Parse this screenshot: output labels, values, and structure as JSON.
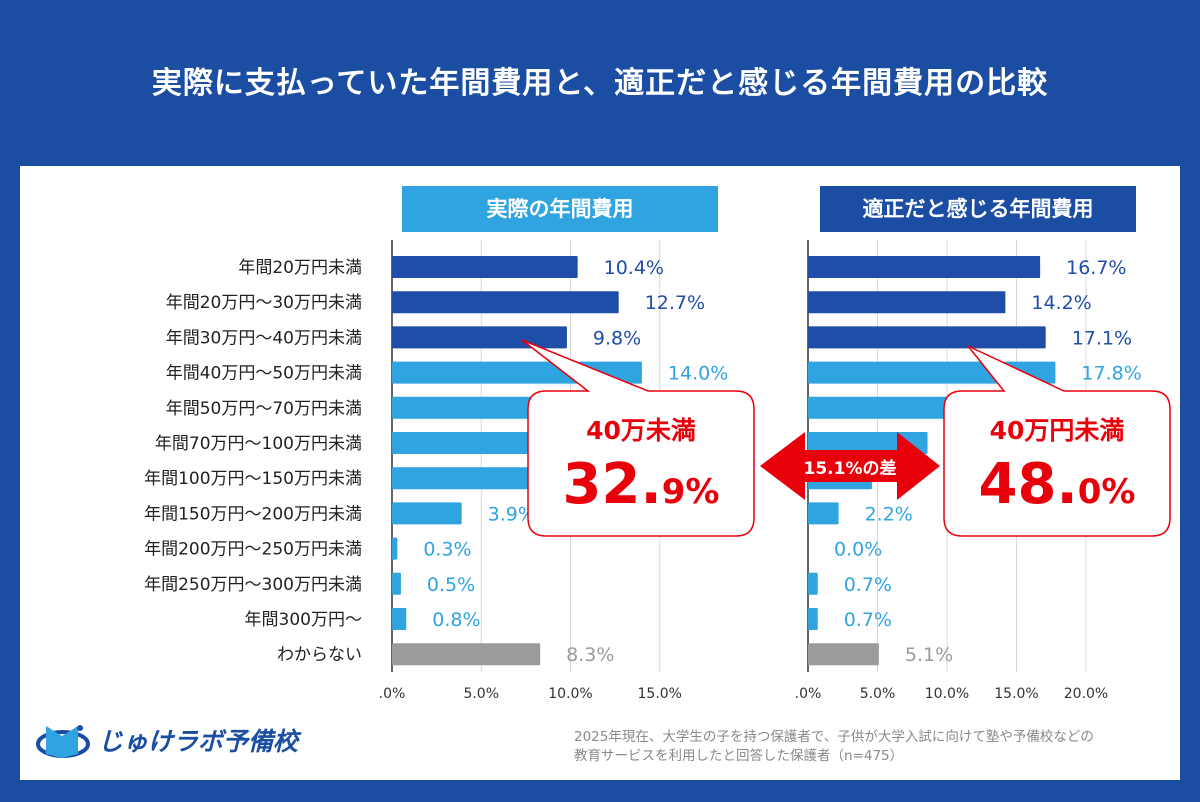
{
  "title": "実際に支払っていた年間費用と、適正だと感じる年間費用の比較",
  "chart_data": [
    {
      "type": "bar",
      "orientation": "horizontal",
      "title": "実際の年間費用",
      "categories": [
        "年間20万円未満",
        "年間20万円〜30万円未満",
        "年間30万円〜40万円未満",
        "年間40万円〜50万円未満",
        "年間50万円〜70万円未満",
        "年間70万円〜100万円未満",
        "年間100万円〜150万円未満",
        "年間150万円〜200万円未満",
        "年間200万円〜250万円未満",
        "年間250万円〜300万円未満",
        "年間300万円〜",
        "わからない"
      ],
      "values": [
        10.4,
        12.7,
        9.8,
        14.0,
        14.4,
        13.2,
        11.7,
        3.9,
        0.3,
        0.5,
        0.8,
        8.3
      ],
      "labels": [
        "10.4%",
        "12.7%",
        "9.8%",
        "14.0%",
        "",
        "",
        "",
        "3.9%",
        "0.3%",
        "0.5%",
        "0.8%",
        "8.3%"
      ],
      "xlim": [
        0,
        17
      ],
      "xticks": [
        ".0%",
        "5.0%",
        "10.0%",
        "15.0%"
      ],
      "xtick_values": [
        0,
        5,
        10,
        15
      ],
      "grid": true,
      "callout": {
        "label": "40万未満",
        "value_main": "32.",
        "value_small": "9%"
      }
    },
    {
      "type": "bar",
      "orientation": "horizontal",
      "title": "適正だと感じる年間費用",
      "categories": [
        "年間20万円未満",
        "年間20万円〜30万円未満",
        "年間30万円〜40万円未満",
        "年間40万円〜50万円未満",
        "年間50万円〜70万円未満",
        "年間70万円〜100万円未満",
        "年間100万円〜150万円未満",
        "年間150万円〜200万円未満",
        "年間200万円〜250万円未満",
        "年間250万円〜300万円未満",
        "年間300万円〜",
        "わからない"
      ],
      "values": [
        16.7,
        14.2,
        17.1,
        17.8,
        12.3,
        8.6,
        4.6,
        2.2,
        0.0,
        0.7,
        0.7,
        5.1
      ],
      "labels": [
        "16.7%",
        "14.2%",
        "17.1%",
        "17.8%",
        "",
        "",
        "",
        "2.2%",
        "0.0%",
        "0.7%",
        "0.7%",
        "5.1%"
      ],
      "xlim": [
        0,
        22
      ],
      "xticks": [
        ".0%",
        "5.0%",
        "10.0%",
        "15.0%",
        "20.0%"
      ],
      "xtick_values": [
        0,
        5,
        10,
        15,
        20
      ],
      "grid": true,
      "callout": {
        "label": "40万円未満",
        "value_main": "48.",
        "value_small": "0%"
      }
    }
  ],
  "difference_arrow": "15.1%の差",
  "colors": {
    "dark_bar": "#1f4ea8",
    "light_bar": "#2fa4e1",
    "unknown_bar": "#9b9b9b",
    "highlight": "#e8000b",
    "background": "#1b4ea3"
  },
  "bar_color_groups": [
    "dark",
    "dark",
    "dark",
    "light",
    "light",
    "light",
    "light",
    "light",
    "light",
    "light",
    "light",
    "gray"
  ],
  "note_lines": [
    "2025年現在、大学生の子を持つ保護者で、子供が大学入試に向けて塾や予備校などの",
    "教育サービスを利用したと回答した保護者（n=475）"
  ],
  "logo": "じゅけラボ予備校"
}
